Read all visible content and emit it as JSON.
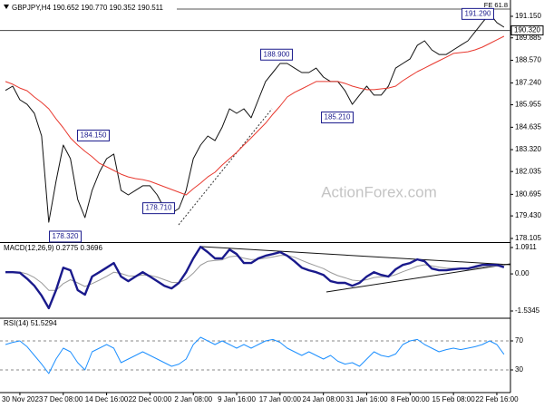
{
  "chart_data": [
    {
      "type": "line",
      "title": "GBPJPY,H4 190.652 190.770 190.352 190.511",
      "watermark": "ActionForex.com",
      "ylim": [
        177.945,
        191.895
      ],
      "yticks": [
        {
          "value": 191.15,
          "label": "191.150"
        },
        {
          "value": 189.885,
          "label": "189.885"
        },
        {
          "value": 188.57,
          "label": "188.570"
        },
        {
          "value": 187.24,
          "label": "187.240"
        },
        {
          "value": 185.955,
          "label": "185.955"
        },
        {
          "value": 184.635,
          "label": "184.635"
        },
        {
          "value": 183.32,
          "label": "183.320"
        },
        {
          "value": 182.035,
          "label": "182.035"
        },
        {
          "value": 180.695,
          "label": "180.695"
        },
        {
          "value": 179.43,
          "label": "179.430"
        },
        {
          "value": 178.105,
          "label": "178.105"
        }
      ],
      "grid": false,
      "current_price": {
        "value": 190.32,
        "label": "190.320"
      },
      "fe_level": {
        "value": 191.575,
        "label": "FE 61.8"
      },
      "annotations": [
        {
          "value": 191.29,
          "label": "191.290"
        },
        {
          "value": 188.9,
          "label": "188.900"
        },
        {
          "value": 184.15,
          "label": "184.150"
        },
        {
          "value": 185.21,
          "label": "185.210"
        },
        {
          "value": 178.71,
          "label": "178.710"
        },
        {
          "value": 178.32,
          "label": "178.320"
        }
      ],
      "series": [
        {
          "color": "#111111",
          "width": 1,
          "values": [
            186.8,
            187.05,
            186.25,
            185.98,
            185.45,
            184.12,
            179.06,
            181.46,
            183.59,
            182.79,
            180.4,
            179.33,
            180.93,
            181.99,
            182.79,
            183.06,
            180.93,
            180.66,
            180.93,
            181.2,
            181.2,
            180.66,
            179.86,
            179.6,
            179.86,
            180.93,
            182.79,
            183.59,
            184.12,
            183.85,
            184.65,
            185.72,
            185.45,
            185.72,
            185.19,
            186.25,
            187.32,
            187.85,
            188.38,
            188.38,
            188.11,
            187.85,
            187.85,
            188.11,
            187.58,
            187.32,
            187.32,
            186.78,
            185.98,
            186.52,
            187.05,
            186.52,
            186.52,
            187.05,
            188.11,
            188.38,
            188.65,
            189.45,
            189.71,
            189.18,
            188.91,
            188.91,
            189.18,
            189.45,
            189.71,
            190.24,
            190.78,
            191.31,
            190.78,
            190.511
          ]
        },
        {
          "color": "#e8392f",
          "width": 1,
          "values": [
            187.32,
            187.16,
            186.94,
            186.78,
            186.41,
            186.09,
            185.72,
            185.13,
            184.6,
            184.01,
            183.59,
            183.22,
            182.9,
            182.52,
            182.31,
            182.1,
            181.88,
            181.72,
            181.62,
            181.56,
            181.46,
            181.3,
            181.14,
            180.98,
            180.82,
            180.66,
            181.03,
            181.35,
            181.72,
            181.99,
            182.42,
            182.79,
            183.16,
            183.59,
            184.01,
            184.44,
            184.87,
            185.4,
            185.88,
            186.41,
            186.68,
            186.89,
            187.1,
            187.32,
            187.32,
            187.32,
            187.32,
            187.21,
            187.05,
            186.94,
            186.84,
            186.84,
            186.89,
            186.94,
            187.05,
            187.37,
            187.64,
            187.9,
            188.11,
            188.33,
            188.54,
            188.75,
            188.97,
            189.02,
            189.07,
            189.18,
            189.34,
            189.55,
            189.77,
            189.98
          ]
        }
      ]
    },
    {
      "type": "line",
      "title": "MACD(12,26,9) 0.2775 0.3696",
      "ylim": [
        -1.797,
        1.241
      ],
      "yticks": [
        1.0911,
        {
          "value": 0,
          "label": "0.00"
        },
        -1.5345
      ],
      "grid": false,
      "series": [
        {
          "color": "#9a9a9a",
          "width": 1,
          "values": [
            0.1,
            0.09,
            0.08,
            0.0,
            -0.15,
            -0.37,
            -0.68,
            -0.68,
            -0.4,
            -0.24,
            -0.37,
            -0.52,
            -0.4,
            -0.26,
            -0.1,
            0.07,
            0.02,
            -0.08,
            -0.09,
            -0.04,
            -0.06,
            -0.13,
            -0.24,
            -0.35,
            -0.36,
            -0.23,
            0.03,
            0.36,
            0.52,
            0.56,
            0.58,
            0.71,
            0.74,
            0.65,
            0.59,
            0.61,
            0.65,
            0.7,
            0.76,
            0.76,
            0.69,
            0.56,
            0.44,
            0.33,
            0.22,
            0.06,
            -0.07,
            -0.16,
            -0.26,
            -0.29,
            -0.24,
            -0.15,
            -0.12,
            -0.12,
            -0.03,
            0.09,
            0.2,
            0.32,
            0.38,
            0.33,
            0.28,
            0.24,
            0.23,
            0.23,
            0.22,
            0.24,
            0.28,
            0.31,
            0.33,
            0.3696
          ]
        },
        {
          "color": "#1a1a8c",
          "width": 2.4,
          "values": [
            0.07,
            0.07,
            0.05,
            -0.2,
            -0.49,
            -0.9,
            -1.42,
            -0.67,
            0.26,
            0.15,
            -0.67,
            -0.86,
            -0.11,
            0.07,
            0.26,
            0.45,
            -0.11,
            -0.3,
            -0.11,
            0.07,
            -0.11,
            -0.3,
            -0.49,
            -0.6,
            -0.37,
            0.07,
            0.64,
            1.12,
            0.9,
            0.64,
            0.64,
            1.01,
            0.82,
            0.45,
            0.45,
            0.64,
            0.75,
            0.82,
            0.9,
            0.75,
            0.52,
            0.26,
            0.15,
            0.07,
            -0.04,
            -0.3,
            -0.37,
            -0.37,
            -0.49,
            -0.37,
            -0.11,
            0.07,
            -0.04,
            -0.11,
            0.19,
            0.37,
            0.45,
            0.6,
            0.52,
            0.22,
            0.15,
            0.15,
            0.19,
            0.22,
            0.22,
            0.3,
            0.37,
            0.37,
            0.37,
            0.2775
          ]
        }
      ]
    },
    {
      "type": "line",
      "title": "RSI(14) 51.5294",
      "ylim": [
        0,
        100
      ],
      "yticks": [
        70,
        30
      ],
      "grid": true,
      "categories": [
        null,
        null,
        "30 Nov 2023",
        null,
        null,
        null,
        null,
        null,
        "7 Dec 08:00",
        null,
        null,
        null,
        null,
        null,
        "14 Dec 16:00",
        null,
        null,
        null,
        null,
        null,
        "22 Dec 00:00",
        null,
        null,
        null,
        null,
        null,
        "2 Jan 08:00",
        null,
        null,
        null,
        null,
        null,
        "9 Jan 16:00",
        null,
        null,
        null,
        null,
        null,
        "17 Jan 00:00",
        null,
        null,
        null,
        null,
        null,
        "24 Jan 08:00",
        null,
        null,
        null,
        null,
        null,
        "31 Jan 16:00",
        null,
        null,
        null,
        null,
        null,
        "8 Feb 00:00",
        null,
        null,
        null,
        null,
        null,
        "15 Feb 08:00",
        null,
        null,
        null,
        null,
        null,
        "22 Feb 16:00",
        null
      ],
      "series": [
        {
          "color": "#1e90ff",
          "width": 1,
          "values": [
            65,
            68,
            70,
            62,
            50,
            38,
            25,
            45,
            60,
            55,
            40,
            30,
            55,
            60,
            65,
            60,
            40,
            45,
            50,
            55,
            50,
            45,
            40,
            35,
            38,
            45,
            65,
            75,
            70,
            65,
            70,
            65,
            60,
            65,
            60,
            65,
            70,
            72,
            68,
            60,
            55,
            50,
            55,
            50,
            45,
            50,
            42,
            38,
            40,
            35,
            45,
            55,
            50,
            48,
            52,
            65,
            70,
            72,
            65,
            60,
            55,
            58,
            60,
            58,
            60,
            62,
            65,
            70,
            65,
            51.5294
          ]
        }
      ]
    }
  ]
}
